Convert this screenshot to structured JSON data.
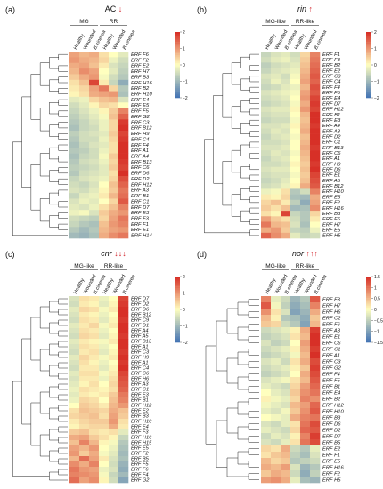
{
  "colors": {
    "low": "#4575b4",
    "mid": "#ffffbf",
    "high": "#d73027",
    "legend_bg": "#ffffff"
  },
  "panels": [
    {
      "label": "(a)",
      "gene": "AC",
      "arrows": "↓",
      "italic": false,
      "columns": [
        "Healthy",
        "Wounded",
        "B.cinerea",
        "Healthy",
        "Wounded",
        "B.cinerea"
      ],
      "groups": [
        "MG",
        "RR"
      ],
      "legend_ticks": [
        "2",
        "1",
        "0",
        "−1",
        "−2"
      ],
      "rows": [
        "ERF F6",
        "ERF F2",
        "ERF E2",
        "ERF H7",
        "ERF B3",
        "ERF H16",
        "ERF B2",
        "ERF H10",
        "ERF E4",
        "ERF E5",
        "ERF F5",
        "ERF G2",
        "ERF C3",
        "ERF B12",
        "ERF H9",
        "ERF C4",
        "ERF F4",
        "ERF A1",
        "ERF A4",
        "ERF B13",
        "ERF C6",
        "ERF D6",
        "ERF D2",
        "ERF H12",
        "ERF A3",
        "ERF B1",
        "ERF C1",
        "ERF D7",
        "ERF E3",
        "ERF F3",
        "ERF F1",
        "ERF E1",
        "ERF H14"
      ],
      "values": [
        [
          0.9,
          0.7,
          0.8,
          0.3,
          0.0,
          -0.3
        ],
        [
          1.0,
          0.8,
          0.7,
          0.4,
          -0.2,
          -0.5
        ],
        [
          0.8,
          0.9,
          0.6,
          0.2,
          -0.4,
          -0.6
        ],
        [
          0.7,
          1.1,
          0.9,
          0.0,
          -0.3,
          -0.7
        ],
        [
          0.5,
          0.8,
          1.0,
          -0.1,
          -0.5,
          -0.8
        ],
        [
          0.3,
          0.6,
          1.8,
          0.2,
          -0.6,
          -1.2
        ],
        [
          0.2,
          0.4,
          0.9,
          1.3,
          0.4,
          -0.8
        ],
        [
          0.1,
          0.3,
          0.8,
          0.9,
          1.0,
          -0.9
        ],
        [
          -0.3,
          -0.2,
          0.4,
          0.6,
          0.7,
          -0.4
        ],
        [
          -0.5,
          -0.3,
          0.1,
          0.4,
          0.3,
          0.0
        ],
        [
          -0.6,
          -0.4,
          -0.2,
          0.1,
          0.5,
          1.2
        ],
        [
          -0.7,
          -0.5,
          -0.3,
          -0.1,
          0.6,
          1.5
        ],
        [
          -0.8,
          -0.6,
          -0.4,
          -0.2,
          0.4,
          1.9
        ],
        [
          -0.9,
          -0.6,
          -0.5,
          -0.2,
          0.4,
          2.0
        ],
        [
          -0.7,
          -0.5,
          -0.4,
          -0.3,
          0.5,
          1.8
        ],
        [
          -0.8,
          -0.5,
          -0.5,
          -0.2,
          0.4,
          1.9
        ],
        [
          -0.9,
          -0.6,
          -0.4,
          -0.3,
          0.3,
          2.0
        ],
        [
          -0.8,
          -0.7,
          -0.5,
          -0.2,
          0.3,
          2.1
        ],
        [
          -0.9,
          -0.6,
          -0.5,
          -0.1,
          0.5,
          2.0
        ],
        [
          -0.8,
          -0.5,
          -0.4,
          -0.2,
          0.4,
          1.9
        ],
        [
          -0.7,
          -0.6,
          -0.5,
          -0.3,
          0.5,
          1.8
        ],
        [
          -0.8,
          -0.5,
          -0.4,
          -0.3,
          0.3,
          2.0
        ],
        [
          -0.6,
          -0.4,
          -0.3,
          -0.2,
          0.4,
          1.7
        ],
        [
          -0.5,
          -0.6,
          -0.4,
          0.0,
          0.6,
          1.5
        ],
        [
          -0.4,
          -0.5,
          -0.3,
          0.1,
          0.5,
          1.3
        ],
        [
          -0.6,
          -0.3,
          -0.2,
          0.2,
          0.7,
          1.4
        ],
        [
          -0.4,
          -0.2,
          -0.3,
          0.0,
          0.4,
          1.6
        ],
        [
          -0.3,
          -0.4,
          -0.2,
          0.3,
          0.6,
          1.2
        ],
        [
          -0.2,
          -0.1,
          -0.4,
          0.5,
          0.8,
          1.0
        ],
        [
          -0.5,
          -0.6,
          -0.7,
          0.4,
          0.9,
          1.3
        ],
        [
          -0.6,
          -0.8,
          -0.9,
          0.6,
          1.0,
          1.2
        ],
        [
          -0.8,
          -1.0,
          -0.8,
          0.7,
          0.9,
          1.0
        ],
        [
          -1.0,
          -1.1,
          -0.9,
          0.8,
          1.1,
          1.3
        ]
      ]
    },
    {
      "label": "(b)",
      "gene": "rin",
      "arrows": "↑",
      "italic": true,
      "columns": [
        "Healthy",
        "Wounded",
        "B.cinerea",
        "Healthy",
        "Wounded",
        "B.cinerea"
      ],
      "groups": [
        "MG-like",
        "RR-like"
      ],
      "legend_ticks": [
        "2",
        "1",
        "0",
        "−1",
        "−2"
      ],
      "rows": [
        "ERF F1",
        "ERF F3",
        "ERF B2",
        "ERF E2",
        "ERF C3",
        "ERF C4",
        "ERF F4",
        "ERF F5",
        "ERF E4",
        "ERF D7",
        "ERF H12",
        "ERF B1",
        "ERF E3",
        "ERF A4",
        "ERF A3",
        "ERF D2",
        "ERF C1",
        "ERF B13",
        "ERF C6",
        "ERF A1",
        "ERF H9",
        "ERF D6",
        "ERF E1",
        "ERF A5",
        "ERF B12",
        "ERF H10",
        "ERF E5",
        "ERF F2",
        "ERF H16",
        "ERF B3",
        "ERF F6",
        "ERF H7",
        "ERF E5",
        "ERF H5"
      ],
      "values": [
        [
          -0.6,
          -0.4,
          -0.3,
          -0.5,
          0.4,
          1.2
        ],
        [
          -0.5,
          -0.3,
          -0.2,
          -0.4,
          0.5,
          1.3
        ],
        [
          -0.7,
          -0.5,
          -0.4,
          -0.3,
          0.6,
          1.4
        ],
        [
          -0.6,
          -0.4,
          -0.3,
          -0.2,
          0.7,
          1.5
        ],
        [
          -0.4,
          -0.3,
          -0.5,
          -0.1,
          0.8,
          1.6
        ],
        [
          -0.5,
          -0.2,
          -0.4,
          0.0,
          0.9,
          1.5
        ],
        [
          -0.6,
          -0.5,
          -0.3,
          -0.2,
          0.7,
          1.7
        ],
        [
          -0.4,
          -0.3,
          -0.2,
          -0.1,
          0.9,
          1.6
        ],
        [
          -0.5,
          -0.4,
          -0.3,
          0.0,
          1.0,
          1.8
        ],
        [
          -0.6,
          -0.5,
          -0.4,
          -0.1,
          0.8,
          1.9
        ],
        [
          -0.4,
          -0.3,
          -0.3,
          0.1,
          1.0,
          1.8
        ],
        [
          -0.5,
          -0.4,
          -0.4,
          0.0,
          0.7,
          2.0
        ],
        [
          -0.6,
          -0.5,
          -0.5,
          -0.1,
          0.6,
          2.0
        ],
        [
          -0.4,
          -0.4,
          -0.3,
          0.1,
          0.7,
          1.9
        ],
        [
          -0.5,
          -0.3,
          -0.4,
          0.0,
          0.8,
          2.0
        ],
        [
          -0.6,
          -0.4,
          -0.3,
          -0.1,
          0.6,
          2.0
        ],
        [
          -0.5,
          -0.5,
          -0.4,
          0.0,
          0.7,
          2.0
        ],
        [
          -0.4,
          -0.4,
          -0.3,
          0.0,
          0.8,
          1.9
        ],
        [
          -0.5,
          -0.3,
          -0.4,
          -0.1,
          0.7,
          2.0
        ],
        [
          -0.6,
          -0.4,
          -0.3,
          0.0,
          0.6,
          2.0
        ],
        [
          -0.5,
          -0.5,
          -0.4,
          0.1,
          0.5,
          1.9
        ],
        [
          -0.4,
          -0.3,
          -0.3,
          0.0,
          0.6,
          2.0
        ],
        [
          -0.5,
          -0.4,
          -0.4,
          -0.1,
          0.5,
          1.8
        ],
        [
          -0.6,
          -0.5,
          -0.3,
          0.0,
          0.6,
          1.7
        ],
        [
          -0.5,
          -0.4,
          -0.2,
          0.1,
          0.8,
          1.6
        ],
        [
          -0.2,
          -0.1,
          0.3,
          -0.8,
          -0.5,
          1.2
        ],
        [
          0.2,
          0.1,
          0.4,
          -0.9,
          -1.0,
          0.8
        ],
        [
          0.4,
          0.6,
          0.2,
          -0.7,
          -1.2,
          0.9
        ],
        [
          0.5,
          0.3,
          0.6,
          -1.0,
          -0.9,
          1.1
        ],
        [
          0.3,
          0.1,
          1.8,
          -0.6,
          -0.8,
          0.4
        ],
        [
          0.9,
          0.5,
          0.3,
          -0.5,
          -0.8,
          0.2
        ],
        [
          1.3,
          0.7,
          0.6,
          -0.4,
          -0.9,
          0.0
        ],
        [
          0.8,
          1.0,
          0.5,
          -0.6,
          -0.7,
          -0.2
        ],
        [
          1.5,
          1.1,
          0.8,
          -0.3,
          -0.6,
          -0.5
        ]
      ]
    },
    {
      "label": "(c)",
      "gene": "cnr",
      "arrows": "↓↓↓",
      "italic": true,
      "columns": [
        "Healthy",
        "Wounded",
        "B.cinerea",
        "Healthy",
        "Wounded",
        "B.cinerea"
      ],
      "groups": [
        "MG-like",
        "RR-like"
      ],
      "legend_ticks": [
        "2",
        "1",
        "0",
        "−1",
        "−2"
      ],
      "rows": [
        "ERF D7",
        "ERF D2",
        "ERF D6",
        "ERF B12",
        "ERF C9",
        "ERF D1",
        "ERF A4",
        "ERF A5",
        "ERF B13",
        "ERF A1",
        "ERF C3",
        "ERF H9",
        "ERF A1",
        "ERF C4",
        "ERF C6",
        "ERF H6",
        "ERF A3",
        "ERF C1",
        "ERF E3",
        "ERF B1",
        "ERF H12",
        "ERF E2",
        "ERF B3",
        "ERF H10",
        "ERF E4",
        "ERF F3",
        "ERF H16",
        "ERF H15",
        "ERF E5",
        "ERF F2",
        "ERF B5",
        "ERF F5",
        "ERF F6",
        "ERF F4",
        "ERF G2"
      ],
      "values": [
        [
          -0.4,
          0.3,
          0.2,
          -0.2,
          0.0,
          1.8
        ],
        [
          -0.5,
          0.2,
          0.1,
          -0.3,
          0.1,
          1.9
        ],
        [
          -0.3,
          0.4,
          0.3,
          -0.1,
          0.2,
          2.0
        ],
        [
          -0.4,
          0.2,
          0.1,
          -0.2,
          0.0,
          2.0
        ],
        [
          -0.5,
          0.3,
          0.2,
          -0.3,
          0.1,
          1.9
        ],
        [
          -0.3,
          0.2,
          0.4,
          -0.1,
          0.2,
          2.0
        ],
        [
          -0.4,
          0.3,
          0.2,
          -0.2,
          0.0,
          2.0
        ],
        [
          -0.5,
          0.4,
          0.3,
          -0.3,
          0.1,
          1.9
        ],
        [
          -0.3,
          0.2,
          0.1,
          -0.1,
          0.2,
          2.0
        ],
        [
          -0.4,
          0.3,
          0.2,
          -0.2,
          0.0,
          2.0
        ],
        [
          -0.5,
          0.2,
          0.3,
          -0.3,
          0.1,
          1.9
        ],
        [
          -0.3,
          0.4,
          0.2,
          -0.1,
          0.2,
          2.0
        ],
        [
          -0.4,
          0.3,
          0.1,
          -0.2,
          0.0,
          1.9
        ],
        [
          -0.5,
          0.2,
          0.2,
          -0.3,
          0.1,
          2.0
        ],
        [
          -0.3,
          0.3,
          0.3,
          -0.1,
          0.2,
          1.8
        ],
        [
          -0.4,
          0.2,
          0.2,
          -0.2,
          0.3,
          1.7
        ],
        [
          -0.3,
          0.1,
          0.3,
          0.0,
          0.4,
          1.6
        ],
        [
          -0.2,
          0.3,
          0.2,
          0.1,
          0.3,
          1.5
        ],
        [
          -0.3,
          0.2,
          0.1,
          0.2,
          0.5,
          1.3
        ],
        [
          -0.2,
          0.4,
          0.3,
          0.0,
          0.6,
          1.2
        ],
        [
          0.0,
          0.5,
          0.4,
          0.2,
          0.7,
          1.0
        ],
        [
          0.3,
          0.6,
          0.5,
          0.4,
          0.8,
          0.6
        ],
        [
          0.4,
          0.5,
          0.6,
          0.3,
          0.9,
          0.5
        ],
        [
          0.2,
          0.4,
          0.5,
          0.5,
          1.0,
          0.3
        ],
        [
          0.1,
          0.3,
          0.4,
          0.4,
          0.8,
          0.2
        ],
        [
          0.5,
          0.6,
          0.3,
          0.2,
          0.3,
          -0.3
        ],
        [
          0.8,
          0.9,
          0.5,
          0.3,
          0.1,
          -0.6
        ],
        [
          0.6,
          1.2,
          0.7,
          0.1,
          -0.1,
          -0.8
        ],
        [
          0.9,
          0.7,
          1.0,
          0.0,
          -0.2,
          -0.9
        ],
        [
          1.0,
          0.5,
          0.8,
          -0.1,
          -0.3,
          -1.0
        ],
        [
          0.7,
          1.4,
          0.9,
          0.2,
          -0.4,
          -0.9
        ],
        [
          1.1,
          0.8,
          1.2,
          0.0,
          -0.5,
          -1.1
        ],
        [
          1.3,
          1.0,
          0.9,
          -0.2,
          -0.4,
          -1.2
        ],
        [
          1.2,
          1.1,
          1.0,
          -0.1,
          -0.6,
          -1.0
        ],
        [
          1.4,
          0.9,
          1.1,
          0.1,
          -0.5,
          -1.3
        ]
      ]
    },
    {
      "label": "(d)",
      "gene": "nor",
      "arrows": "↑↑↑",
      "italic": true,
      "columns": [
        "Healthy",
        "Wounded",
        "B.cinerea",
        "Healthy",
        "Wounded",
        "B.cinerea"
      ],
      "groups": [
        "MG-like",
        "RR-like"
      ],
      "legend_ticks": [
        "1.5",
        "1",
        "0.5",
        "0",
        "−0.5",
        "−1",
        "−1.5"
      ],
      "rows": [
        "ERF F3",
        "ERF H7",
        "ERF H6",
        "ERF C2",
        "ERF F6",
        "ERF A3",
        "ERF E1",
        "ERF C6",
        "ERF C1",
        "ERF A1",
        "ERF C3",
        "ERF G2",
        "ERF F4",
        "ERF F5",
        "ERF B1",
        "ERF E4",
        "ERF B2",
        "ERF H12",
        "ERF H10",
        "ERF B3",
        "ERF D6",
        "ERF D2",
        "ERF D7",
        "ERF B5",
        "ERF E2",
        "ERF F1",
        "ERF E5",
        "ERF H16",
        "ERF F2",
        "ERF H5"
      ],
      "values": [
        [
          0.9,
          -0.2,
          -0.4,
          -0.8,
          -0.6,
          1.2
        ],
        [
          1.2,
          -0.1,
          -0.5,
          -0.9,
          -0.7,
          0.9
        ],
        [
          0.8,
          0.2,
          -0.3,
          -1.0,
          -0.8,
          0.6
        ],
        [
          0.5,
          0.1,
          -0.6,
          -0.7,
          -0.9,
          0.4
        ],
        [
          0.4,
          0.3,
          -0.4,
          -0.6,
          -1.0,
          0.5
        ],
        [
          -0.4,
          -0.3,
          -0.2,
          0.1,
          0.6,
          1.4
        ],
        [
          -0.5,
          -0.4,
          -0.3,
          0.2,
          0.5,
          1.5
        ],
        [
          -0.3,
          -0.5,
          -0.4,
          0.0,
          0.7,
          1.5
        ],
        [
          -0.4,
          -0.3,
          -0.2,
          0.1,
          0.6,
          1.4
        ],
        [
          -0.5,
          -0.4,
          -0.3,
          -0.1,
          0.5,
          1.5
        ],
        [
          -0.3,
          -0.2,
          -0.4,
          0.2,
          0.6,
          1.3
        ],
        [
          -0.4,
          -0.3,
          -0.2,
          0.1,
          0.4,
          1.4
        ],
        [
          -0.5,
          -0.4,
          -0.3,
          0.0,
          0.6,
          1.3
        ],
        [
          -0.3,
          -0.2,
          -0.1,
          0.2,
          0.5,
          1.2
        ],
        [
          -0.2,
          -0.3,
          -0.4,
          0.3,
          0.7,
          1.1
        ],
        [
          0.0,
          -0.2,
          -0.3,
          0.4,
          0.8,
          1.0
        ],
        [
          0.1,
          -0.1,
          -0.2,
          0.3,
          0.9,
          0.8
        ],
        [
          -0.1,
          -0.2,
          -0.3,
          0.5,
          0.7,
          1.1
        ],
        [
          -0.2,
          -0.3,
          -0.1,
          0.4,
          0.8,
          1.2
        ],
        [
          0.0,
          -0.1,
          -0.2,
          0.6,
          0.9,
          1.0
        ],
        [
          -0.3,
          -0.4,
          -0.2,
          0.2,
          1.0,
          1.3
        ],
        [
          -0.2,
          -0.3,
          -0.4,
          0.3,
          1.1,
          1.2
        ],
        [
          -0.4,
          -0.2,
          -0.3,
          0.1,
          0.9,
          1.4
        ],
        [
          -0.3,
          -0.4,
          -0.2,
          0.2,
          1.0,
          1.3
        ],
        [
          0.3,
          0.2,
          0.6,
          -0.4,
          -0.6,
          -0.2
        ],
        [
          0.2,
          0.4,
          0.5,
          -0.5,
          -0.7,
          -0.3
        ],
        [
          0.5,
          0.3,
          0.4,
          -0.6,
          -0.5,
          -0.4
        ],
        [
          0.6,
          0.5,
          0.7,
          -0.3,
          -0.8,
          -0.6
        ],
        [
          0.4,
          0.6,
          0.5,
          -0.4,
          -0.9,
          -0.5
        ],
        [
          0.7,
          0.8,
          0.6,
          -0.2,
          -0.7,
          -0.8
        ]
      ]
    }
  ]
}
